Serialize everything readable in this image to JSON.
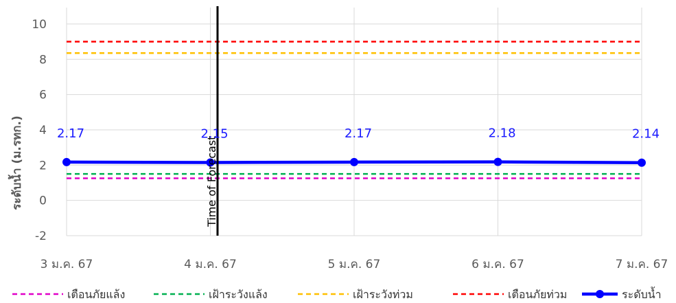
{
  "chart_data": {
    "type": "line",
    "title": "",
    "xlabel": "",
    "ylabel": "ระดับน้ำ (ม.รทก.)",
    "ylim": [
      -2,
      10
    ],
    "yticks": [
      "-2",
      "0",
      "2",
      "4",
      "6",
      "8",
      "10"
    ],
    "categories": [
      "3 ม.ค. 67",
      "4 ม.ค. 67",
      "5 ม.ค. 67",
      "6 ม.ค. 67",
      "7 ม.ค. 67"
    ],
    "grid": "vertical and horizontal",
    "legend_position": "bottom",
    "series": [
      {
        "name": "ระดับน้ำ",
        "values": [
          2.17,
          2.15,
          2.17,
          2.18,
          2.14
        ],
        "labels": [
          "2.17",
          "2.15",
          "2.17",
          "2.18",
          "2.14"
        ],
        "color": "#0000ff",
        "style": "solid-marker"
      }
    ],
    "thresholds": [
      {
        "name": "เตือนภัยแล้ง",
        "value": 1.25,
        "color": "#e000c8",
        "style": "dashed"
      },
      {
        "name": "เฝ้าระวังแล้ง",
        "value": 1.5,
        "color": "#00b050",
        "style": "dashed"
      },
      {
        "name": "เฝ้าระวังท่วม",
        "value": 8.35,
        "color": "#ffc000",
        "style": "dashed"
      },
      {
        "name": "เตือนภัยท่วม",
        "value": 9.0,
        "color": "#ff0000",
        "style": "dashed"
      }
    ],
    "annotation": {
      "label": "Time of Forecast",
      "x_category": "4 ม.ค. 67",
      "offset_fraction": 0.05
    }
  }
}
